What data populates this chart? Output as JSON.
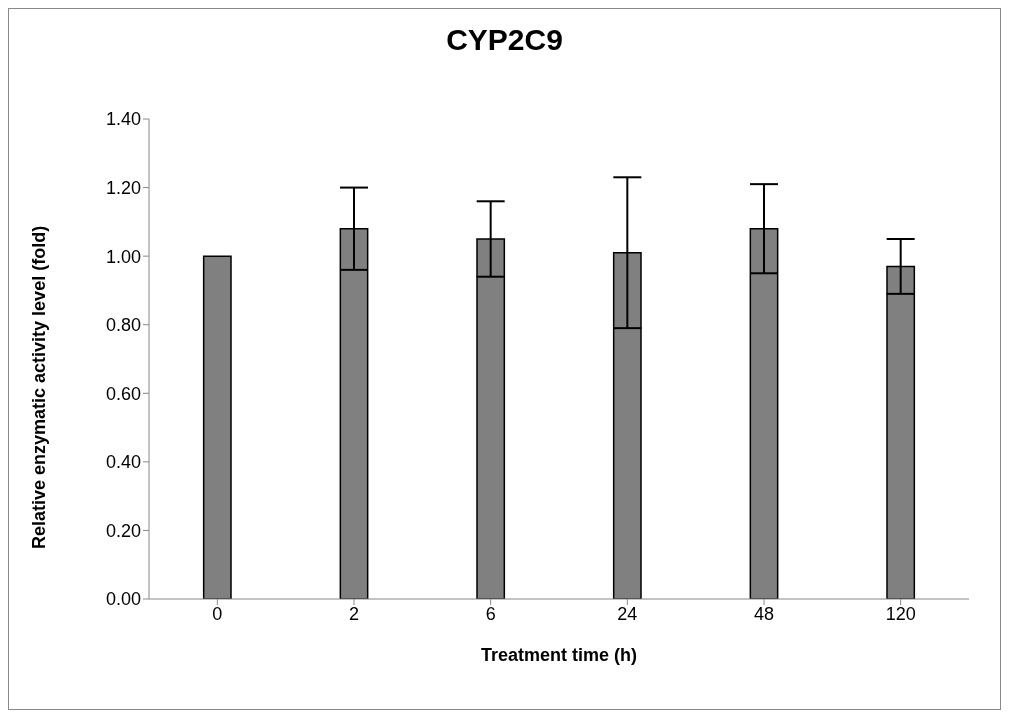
{
  "chart_data": {
    "type": "bar",
    "title": "CYP2C9",
    "xlabel": "Treatment time (h)",
    "ylabel": "Relative enzymatic activity level (fold)",
    "categories": [
      "0",
      "2",
      "6",
      "24",
      "48",
      "120"
    ],
    "values": [
      1.0,
      1.08,
      1.05,
      1.01,
      1.08,
      0.97
    ],
    "errors": [
      0,
      0.12,
      0.11,
      0.22,
      0.13,
      0.08
    ],
    "color": "#808080",
    "ylim": [
      0,
      1.4
    ],
    "yticks": [
      {
        "value": 0,
        "label": "0.00"
      },
      {
        "value": 0.2,
        "label": "0.20"
      },
      {
        "value": 0.4,
        "label": "0.40"
      },
      {
        "value": 0.6,
        "label": "0.60"
      },
      {
        "value": 0.8,
        "label": "0.80"
      },
      {
        "value": 1.0,
        "label": "1.00"
      },
      {
        "value": 1.2,
        "label": "1.20"
      },
      {
        "value": 1.4,
        "label": "1.40"
      }
    ],
    "grid": false,
    "legend": false
  }
}
